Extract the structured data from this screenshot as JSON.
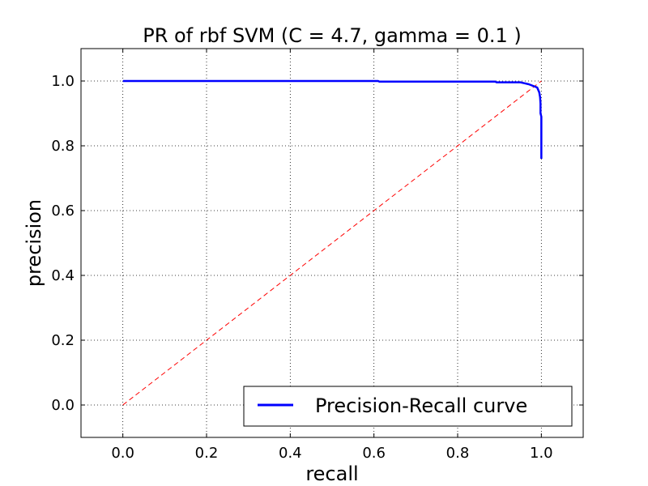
{
  "chart_data": {
    "type": "line",
    "title": "PR of rbf SVM (C = 4.7, gamma = 0.1 )",
    "xlabel": "recall",
    "ylabel": "precision",
    "xlim": [
      -0.1,
      1.1
    ],
    "ylim": [
      -0.1,
      1.1
    ],
    "xticks": [
      0.0,
      0.2,
      0.4,
      0.6,
      0.8,
      1.0
    ],
    "yticks": [
      0.0,
      0.2,
      0.4,
      0.6,
      0.8,
      1.0
    ],
    "xtick_labels": [
      "0.0",
      "0.2",
      "0.4",
      "0.6",
      "0.8",
      "1.0"
    ],
    "ytick_labels": [
      "0.0",
      "0.2",
      "0.4",
      "0.6",
      "0.8",
      "1.0"
    ],
    "grid": true,
    "legend_position": "lower-right",
    "series": [
      {
        "name": "Precision-Recall curve",
        "color": "#0000ff",
        "style": "solid",
        "x": [
          0.0,
          0.61,
          0.613,
          0.89,
          0.893,
          0.95,
          0.96,
          0.97,
          0.98,
          0.99,
          0.995,
          0.997,
          0.998,
          0.998,
          1.0,
          1.0
        ],
        "y": [
          1.0,
          1.0,
          0.998,
          0.998,
          0.996,
          0.996,
          0.993,
          0.99,
          0.985,
          0.98,
          0.965,
          0.95,
          0.93,
          0.9,
          0.89,
          0.76
        ]
      },
      {
        "color": "#ff0000",
        "style": "dashed",
        "x": [
          0.0,
          1.0
        ],
        "y": [
          0.0,
          1.0
        ]
      }
    ]
  }
}
